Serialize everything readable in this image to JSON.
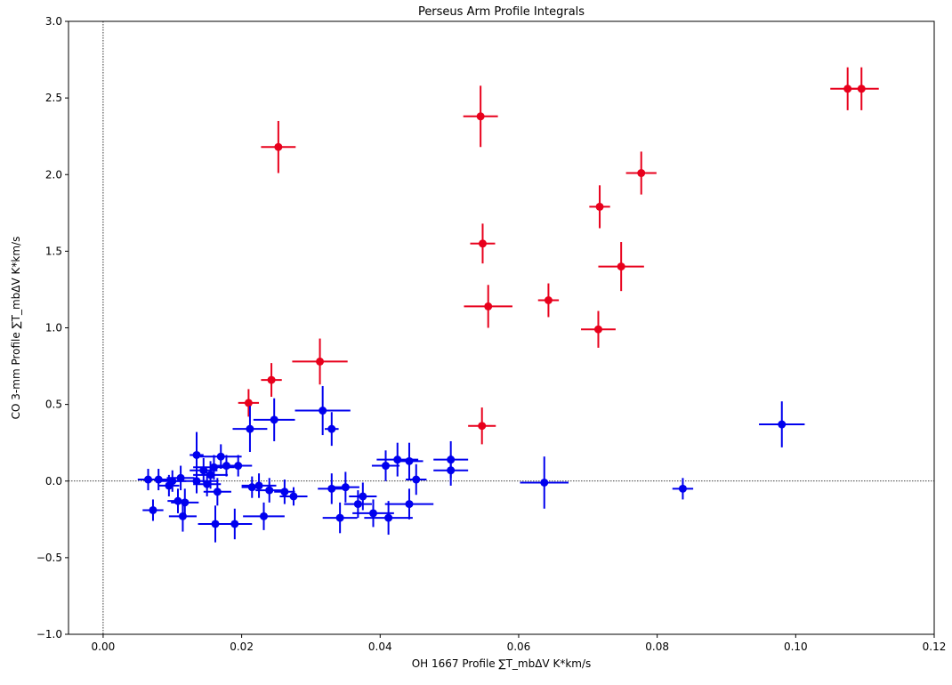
{
  "chart_data": {
    "type": "scatter",
    "title": "Perseus Arm Profile Integrals",
    "xlabel": "OH 1667 Profile ∑T_mbΔV  K*km/s",
    "ylabel": "CO 3-mm Profile ∑T_mbΔV  K*km/s",
    "xlim": [
      -0.005,
      0.12
    ],
    "ylim": [
      -1.0,
      3.0
    ],
    "xticks": [
      0.0,
      0.02,
      0.04,
      0.06,
      0.08,
      0.1,
      0.12
    ],
    "xtick_labels": [
      "0.00",
      "0.02",
      "0.04",
      "0.06",
      "0.08",
      "0.10",
      "0.12"
    ],
    "yticks": [
      -1.0,
      -0.5,
      0.0,
      0.5,
      1.0,
      1.5,
      2.0,
      2.5,
      3.0
    ],
    "ytick_labels": [
      "−1.0",
      "−0.5",
      "0.0",
      "0.5",
      "1.0",
      "1.5",
      "2.0",
      "2.5",
      "3.0"
    ],
    "reference_lines": {
      "x": 0.0,
      "y": 0.0,
      "style": "dotted"
    },
    "grid": false,
    "series": [
      {
        "color": "#e8001c",
        "points": [
          {
            "x": 0.1075,
            "y": 2.56,
            "xerr": 0.0025,
            "yerr": 0.14
          },
          {
            "x": 0.1095,
            "y": 2.56,
            "xerr": 0.0025,
            "yerr": 0.14
          },
          {
            "x": 0.0545,
            "y": 2.38,
            "xerr": 0.0025,
            "yerr": 0.2
          },
          {
            "x": 0.0253,
            "y": 2.18,
            "xerr": 0.0025,
            "yerr": 0.17
          },
          {
            "x": 0.0777,
            "y": 2.01,
            "xerr": 0.0022,
            "yerr": 0.14
          },
          {
            "x": 0.0717,
            "y": 1.79,
            "xerr": 0.0015,
            "yerr": 0.14
          },
          {
            "x": 0.0548,
            "y": 1.55,
            "xerr": 0.0018,
            "yerr": 0.13
          },
          {
            "x": 0.0748,
            "y": 1.4,
            "xerr": 0.0033,
            "yerr": 0.16
          },
          {
            "x": 0.0643,
            "y": 1.18,
            "xerr": 0.0015,
            "yerr": 0.11
          },
          {
            "x": 0.0556,
            "y": 1.14,
            "xerr": 0.0035,
            "yerr": 0.14
          },
          {
            "x": 0.0715,
            "y": 0.99,
            "xerr": 0.0025,
            "yerr": 0.12
          },
          {
            "x": 0.0313,
            "y": 0.78,
            "xerr": 0.004,
            "yerr": 0.15
          },
          {
            "x": 0.0243,
            "y": 0.66,
            "xerr": 0.0015,
            "yerr": 0.11
          },
          {
            "x": 0.021,
            "y": 0.51,
            "xerr": 0.0015,
            "yerr": 0.09
          },
          {
            "x": 0.0547,
            "y": 0.36,
            "xerr": 0.002,
            "yerr": 0.12
          }
        ]
      },
      {
        "color": "#0000ee",
        "points": [
          {
            "x": 0.098,
            "y": 0.37,
            "xerr": 0.0033,
            "yerr": 0.15
          },
          {
            "x": 0.0837,
            "y": -0.05,
            "xerr": 0.0015,
            "yerr": 0.07
          },
          {
            "x": 0.0637,
            "y": -0.01,
            "xerr": 0.0035,
            "yerr": 0.17
          },
          {
            "x": 0.0502,
            "y": 0.14,
            "xerr": 0.0025,
            "yerr": 0.12
          },
          {
            "x": 0.0502,
            "y": 0.07,
            "xerr": 0.0025,
            "yerr": 0.1
          },
          {
            "x": 0.0317,
            "y": 0.46,
            "xerr": 0.004,
            "yerr": 0.16
          },
          {
            "x": 0.0247,
            "y": 0.4,
            "xerr": 0.003,
            "yerr": 0.14
          },
          {
            "x": 0.0212,
            "y": 0.34,
            "xerr": 0.0025,
            "yerr": 0.15
          },
          {
            "x": 0.033,
            "y": 0.34,
            "xerr": 0.001,
            "yerr": 0.11
          },
          {
            "x": 0.0135,
            "y": 0.17,
            "xerr": 0.001,
            "yerr": 0.15
          },
          {
            "x": 0.017,
            "y": 0.16,
            "xerr": 0.003,
            "yerr": 0.08
          },
          {
            "x": 0.0425,
            "y": 0.14,
            "xerr": 0.003,
            "yerr": 0.11
          },
          {
            "x": 0.0442,
            "y": 0.13,
            "xerr": 0.002,
            "yerr": 0.12
          },
          {
            "x": 0.0408,
            "y": 0.1,
            "xerr": 0.002,
            "yerr": 0.1
          },
          {
            "x": 0.0195,
            "y": 0.1,
            "xerr": 0.002,
            "yerr": 0.07
          },
          {
            "x": 0.0178,
            "y": 0.1,
            "xerr": 0.002,
            "yerr": 0.07
          },
          {
            "x": 0.016,
            "y": 0.09,
            "xerr": 0.003,
            "yerr": 0.08
          },
          {
            "x": 0.0145,
            "y": 0.07,
            "xerr": 0.002,
            "yerr": 0.08
          },
          {
            "x": 0.0155,
            "y": 0.04,
            "xerr": 0.0025,
            "yerr": 0.09
          },
          {
            "x": 0.0112,
            "y": 0.02,
            "xerr": 0.002,
            "yerr": 0.08
          },
          {
            "x": 0.0065,
            "y": 0.01,
            "xerr": 0.0015,
            "yerr": 0.07
          },
          {
            "x": 0.008,
            "y": 0.01,
            "xerr": 0.0015,
            "yerr": 0.07
          },
          {
            "x": 0.01,
            "y": 0.0,
            "xerr": 0.002,
            "yerr": 0.07
          },
          {
            "x": 0.0135,
            "y": 0.0,
            "xerr": 0.003,
            "yerr": 0.08
          },
          {
            "x": 0.0452,
            "y": 0.01,
            "xerr": 0.0015,
            "yerr": 0.1
          },
          {
            "x": 0.0095,
            "y": -0.03,
            "xerr": 0.0015,
            "yerr": 0.07
          },
          {
            "x": 0.015,
            "y": -0.02,
            "xerr": 0.002,
            "yerr": 0.08
          },
          {
            "x": 0.0215,
            "y": -0.04,
            "xerr": 0.0015,
            "yerr": 0.07
          },
          {
            "x": 0.0225,
            "y": -0.03,
            "xerr": 0.0025,
            "yerr": 0.08
          },
          {
            "x": 0.024,
            "y": -0.06,
            "xerr": 0.002,
            "yerr": 0.08
          },
          {
            "x": 0.0262,
            "y": -0.07,
            "xerr": 0.0015,
            "yerr": 0.08
          },
          {
            "x": 0.0275,
            "y": -0.1,
            "xerr": 0.002,
            "yerr": 0.06
          },
          {
            "x": 0.0165,
            "y": -0.07,
            "xerr": 0.002,
            "yerr": 0.09
          },
          {
            "x": 0.033,
            "y": -0.05,
            "xerr": 0.002,
            "yerr": 0.1
          },
          {
            "x": 0.035,
            "y": -0.04,
            "xerr": 0.002,
            "yerr": 0.1
          },
          {
            "x": 0.0375,
            "y": -0.1,
            "xerr": 0.002,
            "yerr": 0.09
          },
          {
            "x": 0.0368,
            "y": -0.15,
            "xerr": 0.002,
            "yerr": 0.09
          },
          {
            "x": 0.0442,
            "y": -0.15,
            "xerr": 0.0035,
            "yerr": 0.1
          },
          {
            "x": 0.0118,
            "y": -0.14,
            "xerr": 0.002,
            "yerr": 0.09
          },
          {
            "x": 0.0108,
            "y": -0.13,
            "xerr": 0.0015,
            "yerr": 0.08
          },
          {
            "x": 0.0072,
            "y": -0.19,
            "xerr": 0.0015,
            "yerr": 0.07
          },
          {
            "x": 0.039,
            "y": -0.21,
            "xerr": 0.003,
            "yerr": 0.09
          },
          {
            "x": 0.0342,
            "y": -0.24,
            "xerr": 0.0025,
            "yerr": 0.1
          },
          {
            "x": 0.0412,
            "y": -0.24,
            "xerr": 0.0035,
            "yerr": 0.11
          },
          {
            "x": 0.0232,
            "y": -0.23,
            "xerr": 0.003,
            "yerr": 0.09
          },
          {
            "x": 0.0115,
            "y": -0.23,
            "xerr": 0.002,
            "yerr": 0.1
          },
          {
            "x": 0.0162,
            "y": -0.28,
            "xerr": 0.0025,
            "yerr": 0.12
          },
          {
            "x": 0.019,
            "y": -0.28,
            "xerr": 0.0025,
            "yerr": 0.1
          }
        ]
      }
    ]
  }
}
